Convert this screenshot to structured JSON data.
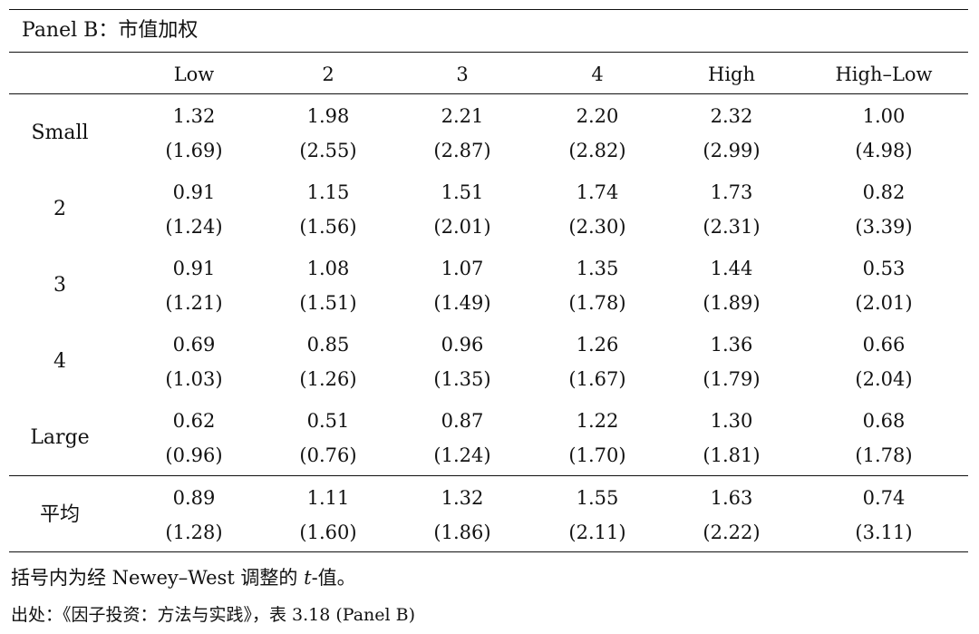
{
  "panel_title": "Panel B：市值加权",
  "columns": [
    "Low",
    "2",
    "3",
    "4",
    "High",
    "High–Low"
  ],
  "rows": [
    {
      "label": "Small",
      "values": [
        "1.32",
        "1.98",
        "2.21",
        "2.20",
        "2.32",
        "1.00"
      ],
      "tstats": [
        "(1.69)",
        "(2.55)",
        "(2.87)",
        "(2.82)",
        "(2.99)",
        "(4.98)"
      ]
    },
    {
      "label": "2",
      "values": [
        "0.91",
        "1.15",
        "1.51",
        "1.74",
        "1.73",
        "0.82"
      ],
      "tstats": [
        "(1.24)",
        "(1.56)",
        "(2.01)",
        "(2.30)",
        "(2.31)",
        "(3.39)"
      ]
    },
    {
      "label": "3",
      "values": [
        "0.91",
        "1.08",
        "1.07",
        "1.35",
        "1.44",
        "0.53"
      ],
      "tstats": [
        "(1.21)",
        "(1.51)",
        "(1.49)",
        "(1.78)",
        "(1.89)",
        "(2.01)"
      ]
    },
    {
      "label": "4",
      "values": [
        "0.69",
        "0.85",
        "0.96",
        "1.26",
        "1.36",
        "0.66"
      ],
      "tstats": [
        "(1.03)",
        "(1.26)",
        "(1.35)",
        "(1.67)",
        "(1.79)",
        "(2.04)"
      ]
    },
    {
      "label": "Large",
      "values": [
        "0.62",
        "0.51",
        "0.87",
        "1.22",
        "1.30",
        "0.68"
      ],
      "tstats": [
        "(0.96)",
        "(0.76)",
        "(1.24)",
        "(1.70)",
        "(1.81)",
        "(1.78)"
      ]
    }
  ],
  "average_row": {
    "label": "平均",
    "values": [
      "0.89",
      "1.11",
      "1.32",
      "1.55",
      "1.63",
      "0.74"
    ],
    "tstats": [
      "(1.28)",
      "(1.60)",
      "(1.86)",
      "(2.11)",
      "(2.22)",
      "(3.11)"
    ]
  },
  "note": {
    "prefix": "括号内为经 Newey–West 调整的 ",
    "italic": "t",
    "suffix": "-值。"
  },
  "source": "出处：《因子投资：方法与实践》，表 3.18 (Panel B)"
}
